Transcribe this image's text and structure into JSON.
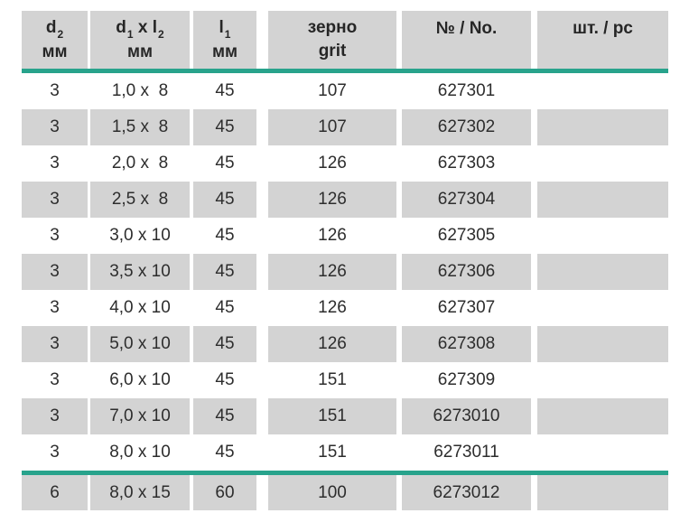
{
  "colors": {
    "cell_gray": "#d3d3d3",
    "accent_teal": "#28a38c",
    "text": "#2d2d2d",
    "page_background": "#ffffff"
  },
  "header": {
    "d2": {
      "symbol": "d",
      "subscript": "2",
      "unit": "мм"
    },
    "d1xl2": {
      "symbol1": "d",
      "subscript1": "1",
      "separator": " x ",
      "symbol2": "l",
      "subscript2": "2",
      "unit": "мм"
    },
    "l1": {
      "symbol": "l",
      "subscript": "1",
      "unit": "мм"
    },
    "grit": {
      "line1": "зерно",
      "line2": "grit"
    },
    "number": {
      "label": "№ / No."
    },
    "pieces": {
      "label": "шт. / pc"
    }
  },
  "rows": [
    {
      "d2": "3",
      "size": "1,0 x  8",
      "l1": "45",
      "grit": "107",
      "no": "627301",
      "pc": ""
    },
    {
      "d2": "3",
      "size": "1,5 x  8",
      "l1": "45",
      "grit": "107",
      "no": "627302",
      "pc": ""
    },
    {
      "d2": "3",
      "size": "2,0 x  8",
      "l1": "45",
      "grit": "126",
      "no": "627303",
      "pc": ""
    },
    {
      "d2": "3",
      "size": "2,5 x  8",
      "l1": "45",
      "grit": "126",
      "no": "627304",
      "pc": ""
    },
    {
      "d2": "3",
      "size": "3,0 x 10",
      "l1": "45",
      "grit": "126",
      "no": "627305",
      "pc": ""
    },
    {
      "d2": "3",
      "size": "3,5 x 10",
      "l1": "45",
      "grit": "126",
      "no": "627306",
      "pc": ""
    },
    {
      "d2": "3",
      "size": "4,0 x 10",
      "l1": "45",
      "grit": "126",
      "no": "627307",
      "pc": ""
    },
    {
      "d2": "3",
      "size": "5,0 x 10",
      "l1": "45",
      "grit": "126",
      "no": "627308",
      "pc": ""
    },
    {
      "d2": "3",
      "size": "6,0 x 10",
      "l1": "45",
      "grit": "151",
      "no": "627309",
      "pc": ""
    },
    {
      "d2": "3",
      "size": "7,0 x 10",
      "l1": "45",
      "grit": "151",
      "no": "6273010",
      "pc": ""
    },
    {
      "d2": "3",
      "size": "8,0 x 10",
      "l1": "45",
      "grit": "151",
      "no": "6273011",
      "pc": ""
    },
    {
      "d2": "6",
      "size": "8,0 x 15",
      "l1": "60",
      "grit": "100",
      "no": "6273012",
      "pc": ""
    }
  ]
}
